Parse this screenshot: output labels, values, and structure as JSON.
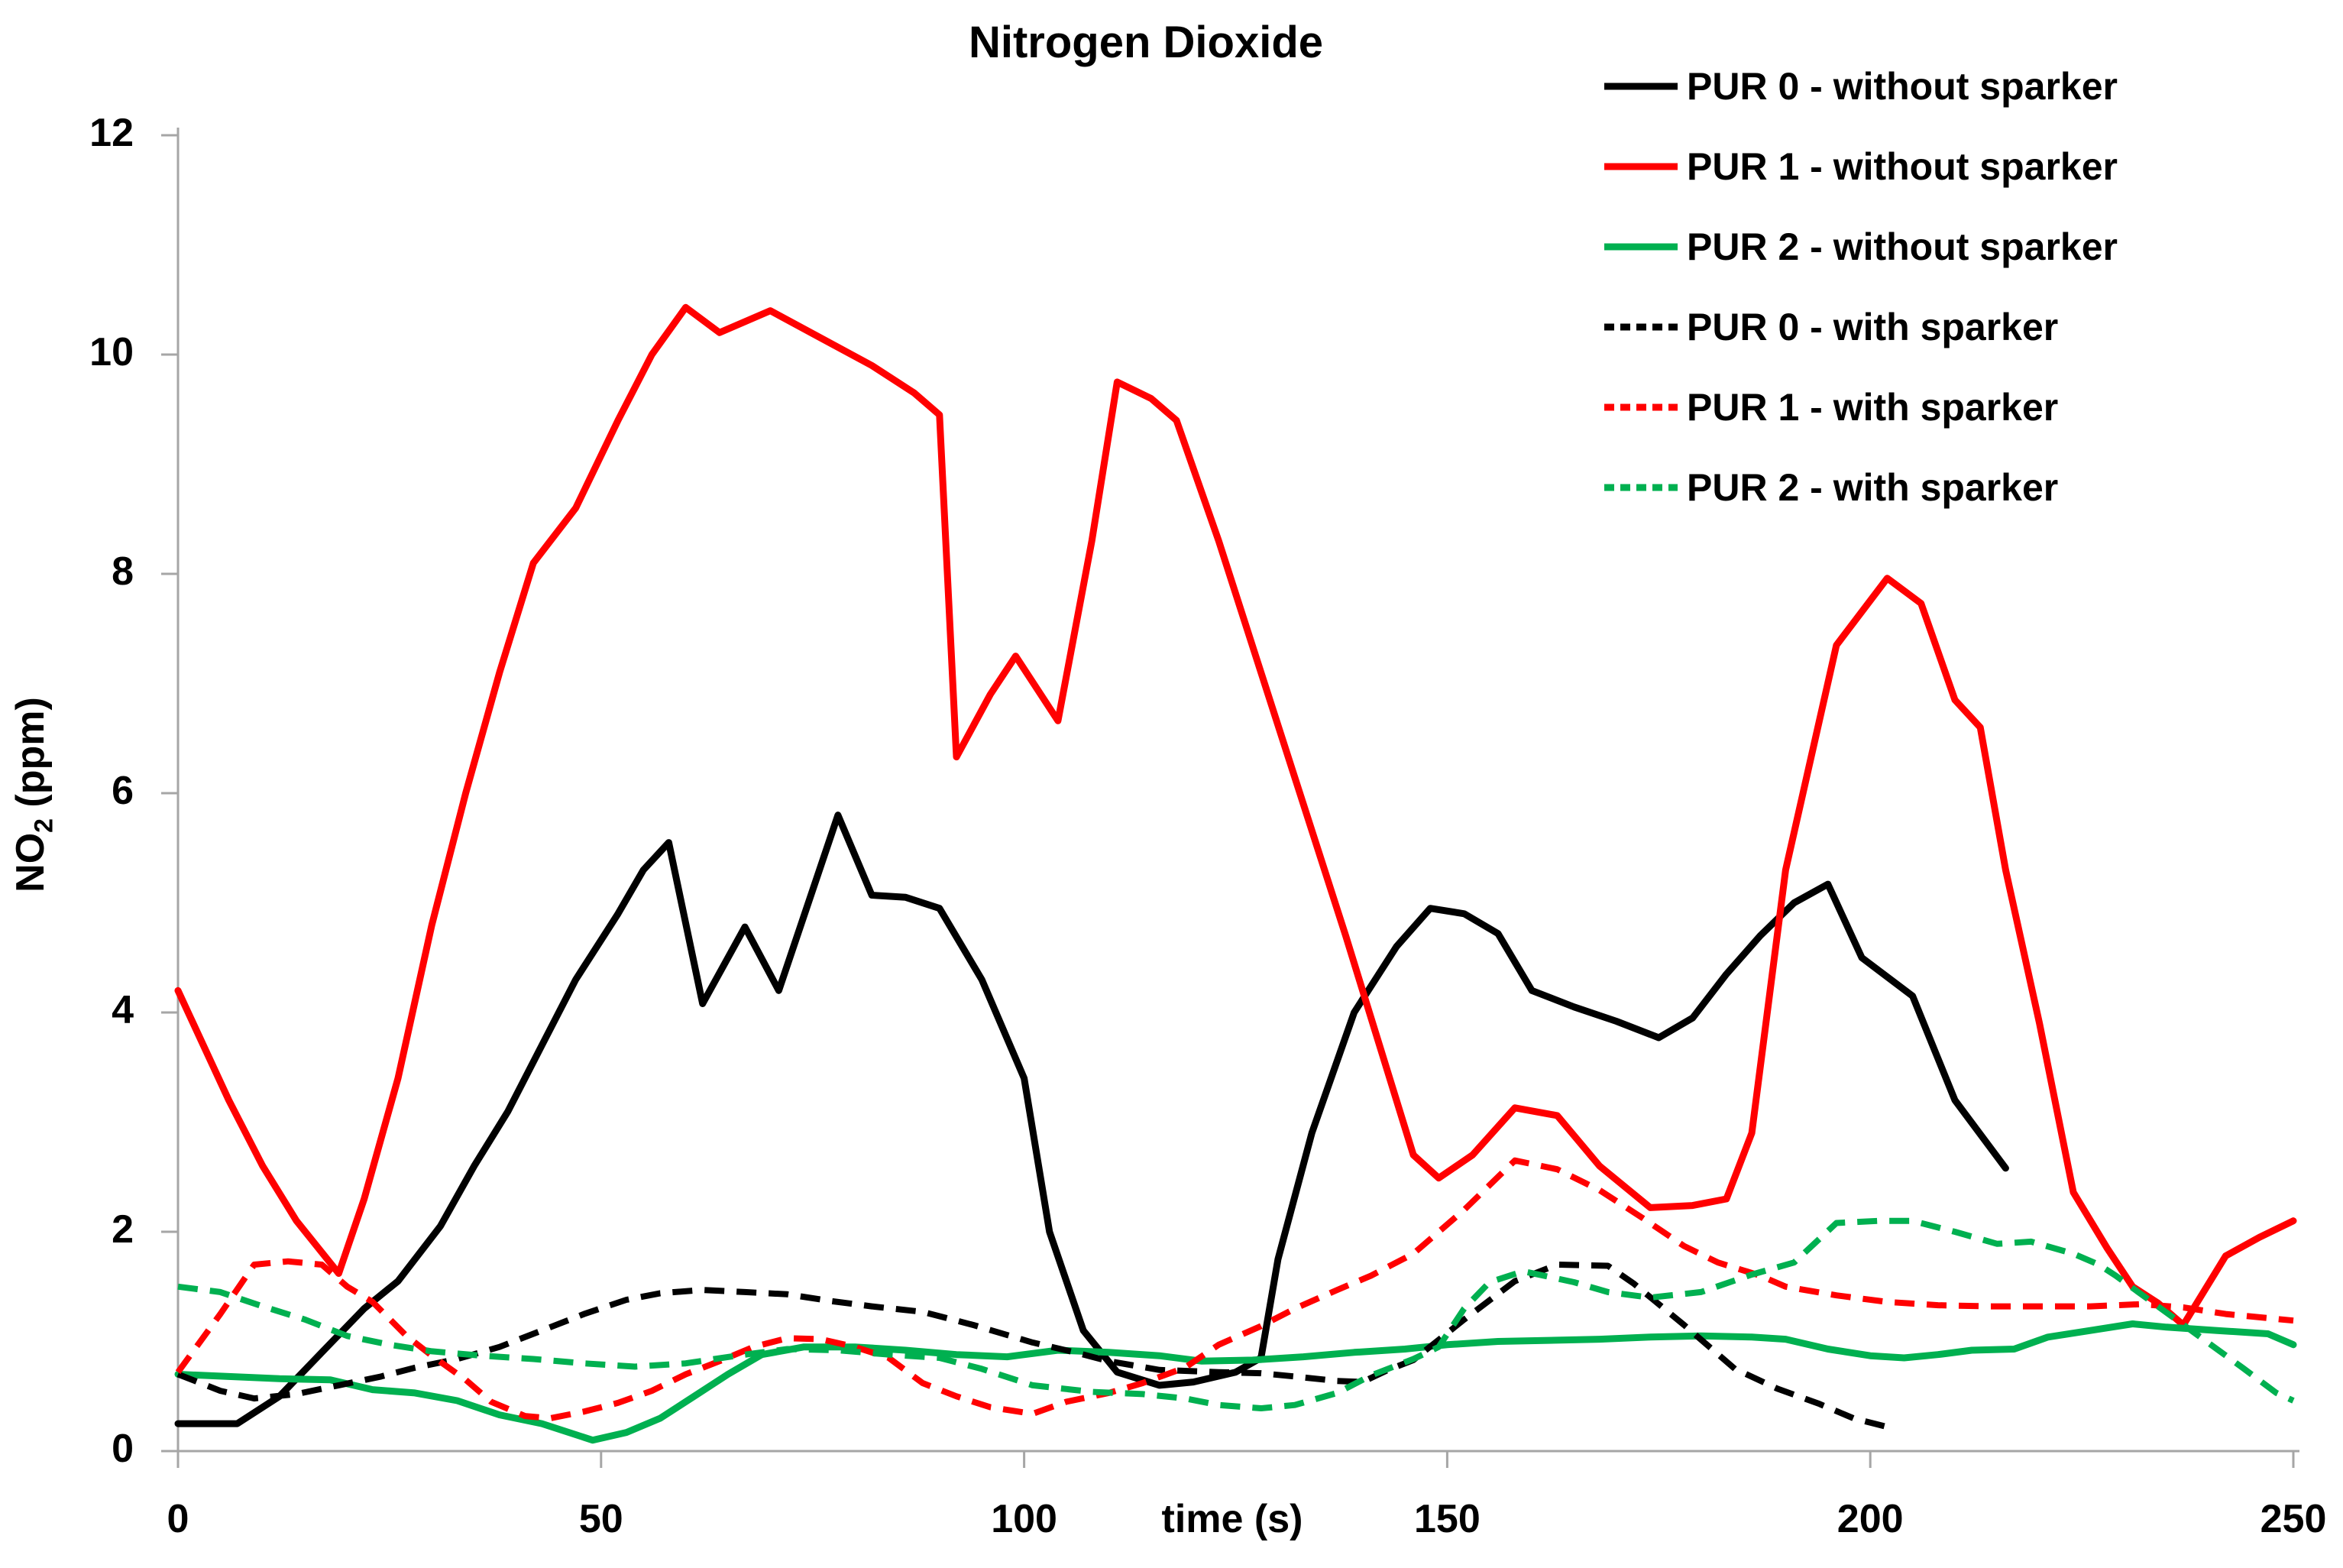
{
  "chart_data": {
    "type": "line",
    "title": "Nitrogen Dioxide",
    "xlabel": "time (s)",
    "ylabel": "NO2 (ppm)",
    "ylabel_parts": {
      "prefix": "NO",
      "sub": "2",
      "suffix": " (ppm)"
    },
    "xlim": [
      0,
      250
    ],
    "ylim": [
      0,
      12
    ],
    "xticks": [
      0,
      50,
      100,
      150,
      200,
      250
    ],
    "yticks": [
      0,
      2,
      4,
      6,
      8,
      10,
      12
    ],
    "grid": false,
    "legend_position": "top-right",
    "axis_color": "#A6A6A6",
    "series": [
      {
        "name": "PUR 0 - without sparker",
        "color": "#000000",
        "line_style": "solid",
        "points": [
          [
            0,
            0.25
          ],
          [
            7,
            0.25
          ],
          [
            12,
            0.5
          ],
          [
            17,
            0.9
          ],
          [
            22,
            1.3
          ],
          [
            26,
            1.55
          ],
          [
            31,
            2.05
          ],
          [
            35,
            2.6
          ],
          [
            39,
            3.1
          ],
          [
            43,
            3.7
          ],
          [
            47,
            4.3
          ],
          [
            52,
            4.9
          ],
          [
            55,
            5.3
          ],
          [
            58,
            5.55
          ],
          [
            62,
            4.08
          ],
          [
            67,
            4.78
          ],
          [
            71,
            4.2
          ],
          [
            78,
            5.8
          ],
          [
            82,
            5.07
          ],
          [
            86,
            5.05
          ],
          [
            90,
            4.95
          ],
          [
            95,
            4.3
          ],
          [
            100,
            3.4
          ],
          [
            103,
            2.0
          ],
          [
            107,
            1.1
          ],
          [
            111,
            0.72
          ],
          [
            116,
            0.6
          ],
          [
            120,
            0.63
          ],
          [
            125,
            0.72
          ],
          [
            128,
            0.85
          ],
          [
            130,
            1.75
          ],
          [
            134,
            2.9
          ],
          [
            139,
            4.0
          ],
          [
            144,
            4.6
          ],
          [
            148,
            4.95
          ],
          [
            152,
            4.9
          ],
          [
            156,
            4.72
          ],
          [
            160,
            4.2
          ],
          [
            165,
            4.05
          ],
          [
            170,
            3.92
          ],
          [
            175,
            3.77
          ],
          [
            179,
            3.95
          ],
          [
            183,
            4.35
          ],
          [
            187,
            4.7
          ],
          [
            191,
            5.0
          ],
          [
            195,
            5.17
          ],
          [
            199,
            4.5
          ],
          [
            205,
            4.15
          ],
          [
            210,
            3.2
          ],
          [
            216,
            2.58
          ]
        ]
      },
      {
        "name": "PUR 1 - without sparker",
        "color": "#FF0000",
        "line_style": "solid",
        "points": [
          [
            0,
            4.2
          ],
          [
            6,
            3.2
          ],
          [
            10,
            2.6
          ],
          [
            14,
            2.1
          ],
          [
            19,
            1.62
          ],
          [
            22,
            2.3
          ],
          [
            26,
            3.4
          ],
          [
            30,
            4.8
          ],
          [
            34,
            6.0
          ],
          [
            38,
            7.1
          ],
          [
            42,
            8.1
          ],
          [
            47,
            8.6
          ],
          [
            52,
            9.4
          ],
          [
            56,
            10.0
          ],
          [
            60,
            10.43
          ],
          [
            64,
            10.2
          ],
          [
            70,
            10.4
          ],
          [
            76,
            10.15
          ],
          [
            82,
            9.9
          ],
          [
            87,
            9.65
          ],
          [
            90,
            9.45
          ],
          [
            92,
            6.33
          ],
          [
            96,
            6.9
          ],
          [
            99,
            7.25
          ],
          [
            104,
            6.66
          ],
          [
            108,
            8.3
          ],
          [
            111,
            9.75
          ],
          [
            115,
            9.6
          ],
          [
            118,
            9.4
          ],
          [
            123,
            8.3
          ],
          [
            128,
            7.1
          ],
          [
            133,
            5.9
          ],
          [
            138,
            4.7
          ],
          [
            142,
            3.7
          ],
          [
            146,
            2.7
          ],
          [
            149,
            2.49
          ],
          [
            153,
            2.7
          ],
          [
            158,
            3.13
          ],
          [
            163,
            3.06
          ],
          [
            168,
            2.6
          ],
          [
            174,
            2.22
          ],
          [
            179,
            2.24
          ],
          [
            183,
            2.3
          ],
          [
            186,
            2.9
          ],
          [
            190,
            5.3
          ],
          [
            196,
            7.35
          ],
          [
            202,
            7.96
          ],
          [
            206,
            7.73
          ],
          [
            210,
            6.85
          ],
          [
            213,
            6.6
          ],
          [
            216,
            5.3
          ],
          [
            220,
            3.9
          ],
          [
            224,
            2.36
          ],
          [
            228,
            1.85
          ],
          [
            231,
            1.5
          ],
          [
            234,
            1.35
          ],
          [
            237,
            1.15
          ],
          [
            242,
            1.78
          ],
          [
            246,
            1.95
          ],
          [
            250,
            2.1
          ]
        ]
      },
      {
        "name": "PUR 2 - without sparker",
        "color": "#00B050",
        "line_style": "solid",
        "points": [
          [
            0,
            0.7
          ],
          [
            6,
            0.68
          ],
          [
            12,
            0.66
          ],
          [
            18,
            0.65
          ],
          [
            23,
            0.56
          ],
          [
            28,
            0.53
          ],
          [
            33,
            0.46
          ],
          [
            38,
            0.33
          ],
          [
            43,
            0.25
          ],
          [
            47,
            0.15
          ],
          [
            49,
            0.1
          ],
          [
            53,
            0.17
          ],
          [
            57,
            0.3
          ],
          [
            61,
            0.5
          ],
          [
            65,
            0.7
          ],
          [
            69,
            0.88
          ],
          [
            74,
            0.95
          ],
          [
            80,
            0.95
          ],
          [
            86,
            0.92
          ],
          [
            92,
            0.88
          ],
          [
            98,
            0.86
          ],
          [
            104,
            0.92
          ],
          [
            110,
            0.9
          ],
          [
            116,
            0.87
          ],
          [
            121,
            0.82
          ],
          [
            127,
            0.83
          ],
          [
            133,
            0.86
          ],
          [
            139,
            0.9
          ],
          [
            145,
            0.93
          ],
          [
            150,
            0.97
          ],
          [
            156,
            1.0
          ],
          [
            162,
            1.01
          ],
          [
            168,
            1.02
          ],
          [
            174,
            1.04
          ],
          [
            180,
            1.05
          ],
          [
            186,
            1.04
          ],
          [
            190,
            1.02
          ],
          [
            195,
            0.93
          ],
          [
            200,
            0.87
          ],
          [
            204,
            0.85
          ],
          [
            208,
            0.88
          ],
          [
            212,
            0.92
          ],
          [
            217,
            0.93
          ],
          [
            221,
            1.04
          ],
          [
            226,
            1.1
          ],
          [
            231,
            1.16
          ],
          [
            235,
            1.13
          ],
          [
            241,
            1.1
          ],
          [
            247,
            1.07
          ],
          [
            250,
            0.97
          ]
        ]
      },
      {
        "name": "PUR 0 - with sparker",
        "color": "#000000",
        "line_style": "dashed",
        "points": [
          [
            0,
            0.7
          ],
          [
            5,
            0.55
          ],
          [
            9,
            0.48
          ],
          [
            14,
            0.52
          ],
          [
            19,
            0.6
          ],
          [
            24,
            0.68
          ],
          [
            28,
            0.76
          ],
          [
            33,
            0.84
          ],
          [
            38,
            0.95
          ],
          [
            43,
            1.1
          ],
          [
            48,
            1.25
          ],
          [
            53,
            1.38
          ],
          [
            57,
            1.44
          ],
          [
            62,
            1.47
          ],
          [
            67,
            1.45
          ],
          [
            72,
            1.43
          ],
          [
            77,
            1.37
          ],
          [
            82,
            1.32
          ],
          [
            88,
            1.27
          ],
          [
            94,
            1.15
          ],
          [
            101,
            0.99
          ],
          [
            106,
            0.9
          ],
          [
            110,
            0.82
          ],
          [
            116,
            0.74
          ],
          [
            123,
            0.72
          ],
          [
            128,
            0.71
          ],
          [
            132,
            0.68
          ],
          [
            137,
            0.64
          ],
          [
            140,
            0.63
          ],
          [
            143,
            0.74
          ],
          [
            146,
            0.83
          ],
          [
            152,
            1.2
          ],
          [
            158,
            1.55
          ],
          [
            163,
            1.7
          ],
          [
            169,
            1.69
          ],
          [
            172,
            1.53
          ],
          [
            178,
            1.15
          ],
          [
            184,
            0.75
          ],
          [
            189,
            0.57
          ],
          [
            194,
            0.43
          ],
          [
            198,
            0.3
          ],
          [
            202,
            0.22
          ]
        ]
      },
      {
        "name": "PUR 1 - with sparker",
        "color": "#FF0000",
        "line_style": "dashed",
        "points": [
          [
            0,
            0.72
          ],
          [
            5,
            1.25
          ],
          [
            9,
            1.7
          ],
          [
            13,
            1.73
          ],
          [
            17,
            1.7
          ],
          [
            20,
            1.5
          ],
          [
            23,
            1.36
          ],
          [
            27,
            1.05
          ],
          [
            30,
            0.87
          ],
          [
            34,
            0.65
          ],
          [
            37,
            0.45
          ],
          [
            41,
            0.32
          ],
          [
            44,
            0.3
          ],
          [
            48,
            0.36
          ],
          [
            52,
            0.44
          ],
          [
            56,
            0.55
          ],
          [
            60,
            0.7
          ],
          [
            64,
            0.82
          ],
          [
            68,
            0.95
          ],
          [
            72,
            1.03
          ],
          [
            76,
            1.02
          ],
          [
            80,
            0.95
          ],
          [
            84,
            0.85
          ],
          [
            88,
            0.62
          ],
          [
            92,
            0.5
          ],
          [
            96,
            0.4
          ],
          [
            101,
            0.34
          ],
          [
            105,
            0.45
          ],
          [
            110,
            0.53
          ],
          [
            114,
            0.62
          ],
          [
            119,
            0.76
          ],
          [
            123,
            0.97
          ],
          [
            128,
            1.14
          ],
          [
            132,
            1.3
          ],
          [
            137,
            1.47
          ],
          [
            141,
            1.6
          ],
          [
            146,
            1.8
          ],
          [
            152,
            2.2
          ],
          [
            158,
            2.65
          ],
          [
            163,
            2.57
          ],
          [
            168,
            2.38
          ],
          [
            173,
            2.13
          ],
          [
            178,
            1.87
          ],
          [
            182,
            1.72
          ],
          [
            187,
            1.6
          ],
          [
            190,
            1.5
          ],
          [
            196,
            1.42
          ],
          [
            202,
            1.36
          ],
          [
            208,
            1.33
          ],
          [
            214,
            1.32
          ],
          [
            220,
            1.32
          ],
          [
            226,
            1.32
          ],
          [
            232,
            1.34
          ],
          [
            237,
            1.31
          ],
          [
            242,
            1.25
          ],
          [
            250,
            1.19
          ]
        ]
      },
      {
        "name": "PUR 2 - with sparker",
        "color": "#00B050",
        "line_style": "dashed",
        "points": [
          [
            0,
            1.5
          ],
          [
            5,
            1.45
          ],
          [
            10,
            1.32
          ],
          [
            15,
            1.2
          ],
          [
            20,
            1.05
          ],
          [
            25,
            0.97
          ],
          [
            30,
            0.91
          ],
          [
            36,
            0.87
          ],
          [
            42,
            0.84
          ],
          [
            48,
            0.8
          ],
          [
            54,
            0.77
          ],
          [
            60,
            0.8
          ],
          [
            66,
            0.87
          ],
          [
            72,
            0.93
          ],
          [
            78,
            0.92
          ],
          [
            84,
            0.88
          ],
          [
            90,
            0.85
          ],
          [
            95,
            0.75
          ],
          [
            101,
            0.6
          ],
          [
            108,
            0.54
          ],
          [
            114,
            0.52
          ],
          [
            119,
            0.48
          ],
          [
            123,
            0.42
          ],
          [
            128,
            0.39
          ],
          [
            132,
            0.42
          ],
          [
            137,
            0.53
          ],
          [
            141,
            0.69
          ],
          [
            146,
            0.84
          ],
          [
            149,
            0.95
          ],
          [
            152,
            1.3
          ],
          [
            155,
            1.54
          ],
          [
            159,
            1.64
          ],
          [
            165,
            1.54
          ],
          [
            169,
            1.45
          ],
          [
            174,
            1.4
          ],
          [
            180,
            1.45
          ],
          [
            186,
            1.61
          ],
          [
            191,
            1.72
          ],
          [
            196,
            2.08
          ],
          [
            201,
            2.1
          ],
          [
            205,
            2.1
          ],
          [
            210,
            2.0
          ],
          [
            215,
            1.89
          ],
          [
            219,
            1.91
          ],
          [
            224,
            1.8
          ],
          [
            227,
            1.7
          ],
          [
            229,
            1.6
          ],
          [
            234,
            1.32
          ],
          [
            239,
            1.04
          ],
          [
            244,
            0.76
          ],
          [
            248,
            0.53
          ],
          [
            250,
            0.46
          ]
        ]
      }
    ]
  }
}
